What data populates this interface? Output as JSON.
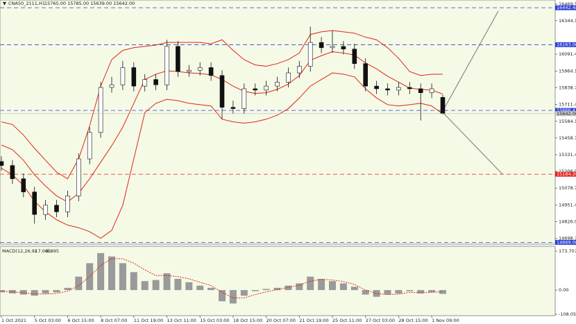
{
  "chart_data": [
    {
      "type": "candlestick",
      "title": "CNA50_2111,H1",
      "ohlc_text": "15765.00 15785.00 15639.00 15642.00",
      "price_label": "15642.00",
      "categories": [
        "1 Oct 2021",
        null,
        null,
        "5 Oct 03:00",
        null,
        null,
        "6 Oct 15:00",
        null,
        null,
        "8 Oct 07:00",
        null,
        null,
        "11 Oct 19:00",
        null,
        null,
        "13 Oct 11:00",
        null,
        null,
        "15 Oct 03:00",
        null,
        null,
        "18 Oct 15:00",
        null,
        null,
        "20 Oct 07:00",
        null,
        null,
        "21 Oct 19:00",
        null,
        null,
        "25 Oct 11:00",
        null,
        null,
        "27 Oct 03:00",
        null,
        null,
        "28 Oct 15:00",
        null,
        null,
        "1 Nov 09:00",
        null
      ],
      "open": [
        15280,
        15250,
        15150,
        15050,
        14880,
        14950,
        14900,
        15020,
        15300,
        15500,
        15840,
        15860,
        15990,
        15850,
        15900,
        15860,
        16150,
        15960,
        15970,
        15990,
        15930,
        15690,
        15680,
        15830,
        15820,
        15850,
        15880,
        15950,
        16000,
        16180,
        16140,
        16150,
        16130,
        16020,
        15850,
        15830,
        15820,
        15840,
        15830,
        15800,
        15765
      ],
      "high": [
        15320,
        15290,
        15190,
        15090,
        14990,
        14990,
        15060,
        15340,
        15540,
        15880,
        15920,
        16040,
        16030,
        15940,
        15940,
        16200,
        16190,
        16010,
        16030,
        16030,
        15970,
        15740,
        15870,
        15870,
        15890,
        15920,
        15990,
        16040,
        16300,
        16220,
        16270,
        16190,
        16170,
        16060,
        15890,
        15870,
        15880,
        15880,
        15870,
        15870,
        15785
      ],
      "low": [
        15210,
        15110,
        15010,
        14810,
        14840,
        14860,
        14860,
        14980,
        15260,
        15460,
        15800,
        15820,
        15810,
        15810,
        15820,
        15820,
        15920,
        15920,
        15930,
        15890,
        15600,
        15640,
        15640,
        15780,
        15780,
        15810,
        15840,
        15910,
        15960,
        16100,
        16100,
        16090,
        15980,
        15810,
        15790,
        15780,
        15780,
        15790,
        15590,
        15760,
        15639
      ],
      "close": [
        15250,
        15150,
        15050,
        14880,
        14950,
        14900,
        15020,
        15300,
        15500,
        15840,
        15860,
        15990,
        15850,
        15900,
        15860,
        16150,
        15960,
        15970,
        15990,
        15930,
        15690,
        15680,
        15830,
        15820,
        15850,
        15880,
        15950,
        16000,
        16180,
        16140,
        16150,
        16130,
        16020,
        15850,
        15830,
        15820,
        15840,
        15830,
        15800,
        15830,
        15642
      ],
      "series": [
        {
          "color": "#e3231b",
          "values": [
            15580,
            15560,
            15480,
            15380,
            15290,
            15200,
            15150,
            15300,
            15550,
            15850,
            16050,
            16120,
            16140,
            16150,
            16160,
            16180,
            16180,
            16180,
            16180,
            16170,
            16200,
            16120,
            16050,
            16010,
            16000,
            16020,
            16050,
            16100,
            16240,
            16260,
            16270,
            16260,
            16250,
            16220,
            16200,
            16140,
            16060,
            15960,
            15930,
            15940,
            15940
          ]
        },
        {
          "color": "#e3231b",
          "values": [
            15405,
            15370,
            15290,
            15180,
            15095,
            15020,
            14975,
            15040,
            15150,
            15275,
            15400,
            15540,
            15720,
            15900,
            15940,
            15965,
            15960,
            15950,
            15945,
            15935,
            15900,
            15850,
            15810,
            15795,
            15800,
            15825,
            15865,
            15930,
            16045,
            16080,
            16110,
            16100,
            16085,
            16025,
            15980,
            15925,
            15880,
            15835,
            15825,
            15820,
            15790
          ]
        },
        {
          "color": "#e3231b",
          "values": [
            15230,
            15180,
            15100,
            14980,
            14900,
            14840,
            14800,
            14780,
            14750,
            14700,
            14760,
            14950,
            15300,
            15650,
            15720,
            15750,
            15740,
            15720,
            15710,
            15700,
            15600,
            15580,
            15570,
            15580,
            15600,
            15630,
            15680,
            15760,
            15850,
            15900,
            15950,
            15940,
            15920,
            15830,
            15760,
            15710,
            15700,
            15710,
            15720,
            15700,
            15640
          ]
        }
      ],
      "levels": [
        {
          "value": 16442.48,
          "label": "16442.48",
          "color": "#2b3fd6"
        },
        {
          "value": 16163.0,
          "label": "16163.00",
          "color": "#2b3fd6"
        },
        {
          "value": 15666.41,
          "label": "15666.41",
          "color": "#2b3fd6"
        },
        {
          "value": 15184.26,
          "label": "15184.26",
          "color": "#e3231b"
        },
        {
          "value": 14669.06,
          "label": "14669.06",
          "color": "#2b3fd6"
        }
      ],
      "ylim": [
        14650,
        16485
      ],
      "yticks": [
        {
          "value": 16469.5,
          "label": "16469.50"
        },
        {
          "value": 16344.1,
          "label": "16344.10"
        },
        {
          "value": 16091.4,
          "label": "16091.40"
        },
        {
          "value": 15964.1,
          "label": "15964.10"
        },
        {
          "value": 15838.7,
          "label": "15838.70"
        },
        {
          "value": 15711.4,
          "label": "15711.40"
        },
        {
          "value": 15584.1,
          "label": "15584.10"
        },
        {
          "value": 15458.7,
          "label": "15458.70"
        },
        {
          "value": 15331.4,
          "label": "15331.40"
        },
        {
          "value": 15206.0,
          "label": "15206.00"
        },
        {
          "value": 15078.7,
          "label": "15078.70"
        },
        {
          "value": 14951.4,
          "label": "14951.40"
        },
        {
          "value": 14826.0,
          "label": "14826.00"
        },
        {
          "value": 14698.7,
          "label": "14698.70"
        }
      ]
    },
    {
      "type": "macd",
      "title": "MACD(12,26,9)",
      "histogram": {
        "color": "#9a9a9a",
        "values": [
          -10,
          -15,
          -20,
          -25,
          -15,
          -10,
          10,
          60,
          120,
          165,
          150,
          120,
          80,
          40,
          45,
          75,
          50,
          35,
          20,
          10,
          -50,
          -60,
          -25,
          -5,
          5,
          10,
          20,
          30,
          60,
          50,
          40,
          30,
          15,
          -20,
          -30,
          -20,
          -15,
          -5,
          -15,
          -10,
          -17.065
        ]
      },
      "signal": {
        "color": "#e3231b",
        "values": [
          -5,
          -8,
          -12,
          -17,
          -18,
          -15,
          -5,
          20,
          60,
          110,
          140,
          140,
          120,
          90,
          65,
          65,
          60,
          50,
          35,
          20,
          -10,
          -35,
          -35,
          -20,
          -8,
          2,
          12,
          22,
          40,
          48,
          45,
          38,
          25,
          0,
          -15,
          -20,
          -18,
          -10,
          -12,
          -10,
          -6.895
        ]
      },
      "ylim": [
        -108.055,
        173.707
      ],
      "yticks": [
        173.707,
        {
          "value": 0,
          "label": "0.00"
        },
        -108.055
      ]
    }
  ]
}
